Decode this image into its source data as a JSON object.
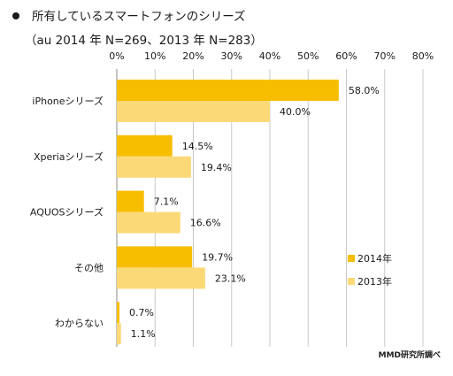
{
  "title": "所有しているスマートフォンのシリーズ",
  "subtitle": "（au 2014 年 N=269、2013 年 N=283）",
  "credit": "MMD研究所調べ",
  "colors": {
    "s2014": "#f7be00",
    "s2013": "#fbd977",
    "grid": "#c8c8c8",
    "axis": "#888888"
  },
  "chart_data": {
    "type": "bar",
    "orientation": "horizontal",
    "categories": [
      "iPhoneシリーズ",
      "Xperiaシリーズ",
      "AQUOSシリーズ",
      "その他",
      "わからない"
    ],
    "series": [
      {
        "name": "2014年",
        "values": [
          58.0,
          14.5,
          7.1,
          19.7,
          0.7
        ],
        "labels": [
          "58.0%",
          "14.5%",
          "7.1%",
          "19.7%",
          "0.7%"
        ]
      },
      {
        "name": "2013年",
        "values": [
          40.0,
          19.4,
          16.6,
          23.1,
          1.1
        ],
        "labels": [
          "40.0%",
          "19.4%",
          "16.6%",
          "23.1%",
          "1.1%"
        ]
      }
    ],
    "xlim": [
      0,
      80
    ],
    "ticks": [
      "0%",
      "10%",
      "20%",
      "30%",
      "40%",
      "50%",
      "60%",
      "70%",
      "80%"
    ],
    "tick_values": [
      0,
      10,
      20,
      30,
      40,
      50,
      60,
      70,
      80
    ],
    "legend": "right",
    "grid": true
  }
}
